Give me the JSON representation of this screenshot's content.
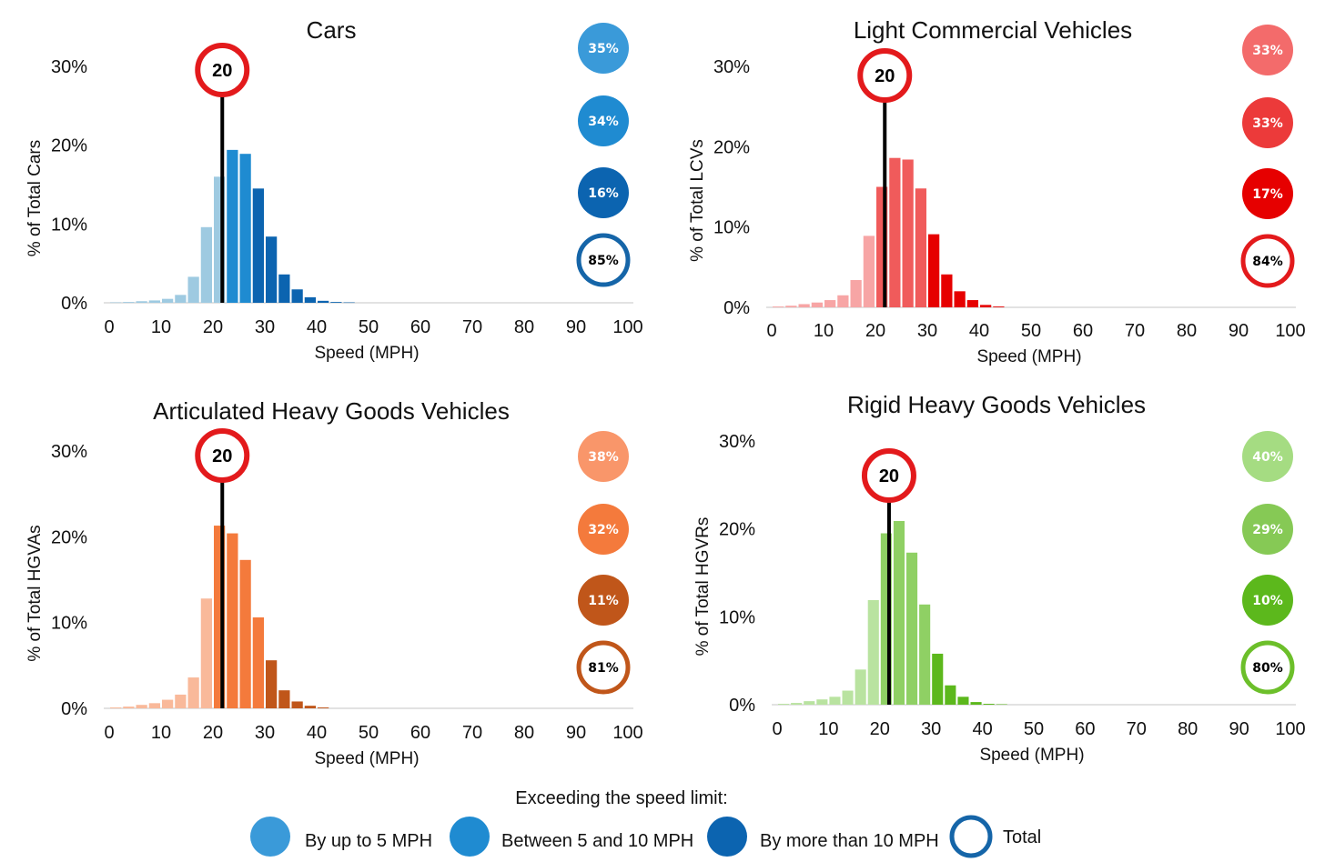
{
  "chart_data": [
    {
      "type": "bar",
      "title": "Cars",
      "xlabel": "Speed (MPH)",
      "ylabel": "% of Total Cars",
      "xlim": [
        0,
        100
      ],
      "ylim": [
        0,
        30
      ],
      "x_ticks": [
        "0",
        "10",
        "20",
        "30",
        "40",
        "50",
        "60",
        "70",
        "80",
        "90",
        "100"
      ],
      "y_ticks": [
        "0%",
        "10%",
        "20%",
        "30%"
      ],
      "speed_limit": "20",
      "bin_width": 2.5,
      "bins_start": [
        0,
        2.5,
        5,
        7.5,
        10,
        12.5,
        15,
        17.5,
        20,
        22.5,
        25,
        27.5,
        30,
        32.5,
        35,
        37.5,
        40,
        42.5,
        45
      ],
      "values": [
        0.05,
        0.1,
        0.2,
        0.3,
        0.5,
        1.0,
        3.3,
        9.6,
        16.0,
        19.4,
        18.9,
        14.5,
        8.4,
        3.6,
        1.7,
        0.7,
        0.25,
        0.1,
        0.05
      ],
      "shade_index": [
        0,
        0,
        0,
        0,
        0,
        0,
        0,
        0,
        0,
        1,
        1,
        2,
        2,
        2,
        2,
        2,
        2,
        2,
        2
      ],
      "colors": [
        "#9ecae1",
        "#1f8bd1",
        "#0c64b0"
      ],
      "limit_color": "#e31a1c",
      "summary": [
        {
          "label": "35%",
          "color": "#3a9ad9",
          "text_color": "#ffffff",
          "filled": true
        },
        {
          "label": "34%",
          "color": "#1f8bd1",
          "text_color": "#ffffff",
          "filled": true
        },
        {
          "label": "16%",
          "color": "#0c64b0",
          "text_color": "#ffffff",
          "filled": true
        },
        {
          "label": "85%",
          "color": "#1565a8",
          "text_color": "#000000",
          "filled": false
        }
      ]
    },
    {
      "type": "bar",
      "title": "Light Commercial Vehicles",
      "xlabel": "Speed (MPH)",
      "ylabel": "% of Total LCVs",
      "xlim": [
        0,
        100
      ],
      "ylim": [
        0,
        30
      ],
      "x_ticks": [
        "0",
        "10",
        "20",
        "30",
        "40",
        "50",
        "60",
        "70",
        "80",
        "90",
        "100"
      ],
      "y_ticks": [
        "0%",
        "10%",
        "20%",
        "30%"
      ],
      "speed_limit": "20",
      "bin_width": 2.5,
      "bins_start": [
        0,
        2.5,
        5,
        7.5,
        10,
        12.5,
        15,
        17.5,
        20,
        22.5,
        25,
        27.5,
        30,
        32.5,
        35,
        37.5,
        40,
        42.5
      ],
      "values": [
        0.1,
        0.2,
        0.4,
        0.6,
        0.9,
        1.5,
        3.4,
        8.9,
        15.0,
        18.6,
        18.4,
        14.8,
        9.1,
        4.1,
        2.0,
        0.9,
        0.3,
        0.1
      ],
      "shade_index": [
        0,
        0,
        0,
        0,
        0,
        0,
        0,
        0,
        1,
        1,
        1,
        1,
        2,
        2,
        2,
        2,
        2,
        2
      ],
      "colors": [
        "#f7a5a5",
        "#f05b5b",
        "#e60000"
      ],
      "limit_color": "#e31a1c",
      "summary": [
        {
          "label": "33%",
          "color": "#f36b6b",
          "text_color": "#ffffff",
          "filled": true
        },
        {
          "label": "33%",
          "color": "#ec3a3a",
          "text_color": "#ffffff",
          "filled": true
        },
        {
          "label": "17%",
          "color": "#e60000",
          "text_color": "#ffffff",
          "filled": true
        },
        {
          "label": "84%",
          "color": "#e31a1c",
          "text_color": "#000000",
          "filled": false
        }
      ]
    },
    {
      "type": "bar",
      "title": "Articulated Heavy Goods Vehicles",
      "xlabel": "Speed (MPH)",
      "ylabel": "% of Total HGVAs",
      "xlim": [
        0,
        100
      ],
      "ylim": [
        0,
        30
      ],
      "x_ticks": [
        "0",
        "10",
        "20",
        "30",
        "40",
        "50",
        "60",
        "70",
        "80",
        "90",
        "100"
      ],
      "y_ticks": [
        "0%",
        "10%",
        "20%",
        "30%"
      ],
      "speed_limit": "20",
      "bin_width": 2.5,
      "bins_start": [
        0,
        2.5,
        5,
        7.5,
        10,
        12.5,
        15,
        17.5,
        20,
        22.5,
        25,
        27.5,
        30,
        32.5,
        35,
        37.5,
        40
      ],
      "values": [
        0.1,
        0.2,
        0.4,
        0.6,
        1.0,
        1.6,
        3.6,
        12.8,
        21.3,
        20.4,
        17.3,
        10.6,
        5.6,
        2.1,
        0.8,
        0.3,
        0.1
      ],
      "shade_index": [
        0,
        0,
        0,
        0,
        0,
        0,
        0,
        0,
        1,
        1,
        1,
        1,
        2,
        2,
        2,
        2,
        2
      ],
      "colors": [
        "#f9b99a",
        "#f47a3c",
        "#c0561a"
      ],
      "limit_color": "#e31a1c",
      "summary": [
        {
          "label": "38%",
          "color": "#f9966a",
          "text_color": "#ffffff",
          "filled": true
        },
        {
          "label": "32%",
          "color": "#f47a3c",
          "text_color": "#ffffff",
          "filled": true
        },
        {
          "label": "11%",
          "color": "#c0561a",
          "text_color": "#ffffff",
          "filled": true
        },
        {
          "label": "81%",
          "color": "#c0561a",
          "text_color": "#000000",
          "filled": false
        }
      ]
    },
    {
      "type": "bar",
      "title": "Rigid Heavy Goods Vehicles",
      "xlabel": "Speed (MPH)",
      "ylabel": "% of Total HGVRs",
      "xlim": [
        0,
        100
      ],
      "ylim": [
        0,
        30
      ],
      "x_ticks": [
        "0",
        "10",
        "20",
        "30",
        "40",
        "50",
        "60",
        "70",
        "80",
        "90",
        "100"
      ],
      "y_ticks": [
        "0%",
        "10%",
        "20%",
        "30%"
      ],
      "speed_limit": "20",
      "bin_width": 2.5,
      "bins_start": [
        0,
        2.5,
        5,
        7.5,
        10,
        12.5,
        15,
        17.5,
        20,
        22.5,
        25,
        27.5,
        30,
        32.5,
        35,
        37.5,
        40,
        42.5
      ],
      "values": [
        0.1,
        0.2,
        0.4,
        0.6,
        0.9,
        1.6,
        4.0,
        11.9,
        19.5,
        20.9,
        17.3,
        11.4,
        5.8,
        2.2,
        0.9,
        0.3,
        0.1,
        0.05
      ],
      "shade_index": [
        0,
        0,
        0,
        0,
        0,
        0,
        0,
        0,
        1,
        1,
        1,
        1,
        2,
        2,
        2,
        2,
        2,
        2
      ],
      "colors": [
        "#b9e3a0",
        "#8fd064",
        "#5cb81c"
      ],
      "limit_color": "#e31a1c",
      "summary": [
        {
          "label": "40%",
          "color": "#a5dc82",
          "text_color": "#ffffff",
          "filled": true
        },
        {
          "label": "29%",
          "color": "#86c955",
          "text_color": "#ffffff",
          "filled": true
        },
        {
          "label": "10%",
          "color": "#5cb81c",
          "text_color": "#ffffff",
          "filled": true
        },
        {
          "label": "80%",
          "color": "#6cbf2a",
          "text_color": "#000000",
          "filled": false
        }
      ]
    }
  ],
  "legend": {
    "title": "Exceeding the speed limit:",
    "items": [
      {
        "label": "By up to 5 MPH",
        "color": "#3a9ad9",
        "filled": true
      },
      {
        "label": "Between 5 and 10 MPH",
        "color": "#1f8bd1",
        "filled": true
      },
      {
        "label": "By more than 10 MPH",
        "color": "#0c64b0",
        "filled": true
      },
      {
        "label": "Total",
        "color": "#1565a8",
        "filled": false
      }
    ]
  }
}
